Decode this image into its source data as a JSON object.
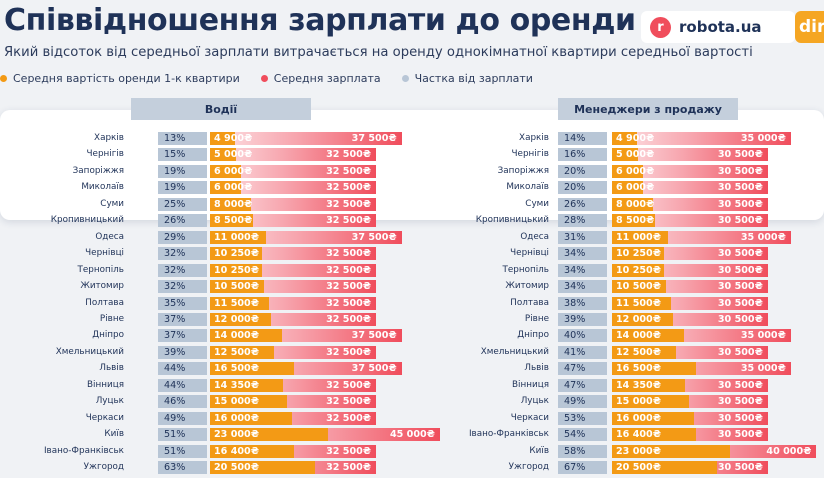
{
  "header": {
    "title": "Співвідношення зарплати до оренди",
    "subtitle": "Який відсоток від середньої зарплати витрачається на оренду однокімнатної квартири середньої вартості"
  },
  "logo": {
    "text": "robota.ua",
    "letter": "r",
    "partner": "dir"
  },
  "legend": [
    {
      "label": "Середня вартість оренди 1-к квартири",
      "color": "#f39a15"
    },
    {
      "label": "Середня зарплата",
      "color": "#f04d5c"
    },
    {
      "label": "Частка від зарплати",
      "color": "#b8c6d6"
    }
  ],
  "colors": {
    "rent": "#f39a15",
    "salary": "#f04d5c",
    "share": "#b8c6d6",
    "title": "#1f3258"
  },
  "chart_data": [
    {
      "type": "bar",
      "title": "Водії",
      "series_names": [
        "Середня вартість оренди 1-к квартири",
        "Середня зарплата",
        "Частка від зарплати"
      ],
      "rows": [
        {
          "city": "Харків",
          "share": "13%",
          "rent": 4900,
          "rent_label": "4 900₴",
          "salary": 37500,
          "salary_label": "37 500₴"
        },
        {
          "city": "Чернігів",
          "share": "15%",
          "rent": 5000,
          "rent_label": "5 000₴",
          "salary": 32500,
          "salary_label": "32 500₴"
        },
        {
          "city": "Запоріжжя",
          "share": "19%",
          "rent": 6000,
          "rent_label": "6 000₴",
          "salary": 32500,
          "salary_label": "32 500₴"
        },
        {
          "city": "Миколаїв",
          "share": "19%",
          "rent": 6000,
          "rent_label": "6 000₴",
          "salary": 32500,
          "salary_label": "32 500₴"
        },
        {
          "city": "Суми",
          "share": "25%",
          "rent": 8000,
          "rent_label": "8 000₴",
          "salary": 32500,
          "salary_label": "32 500₴"
        },
        {
          "city": "Кропивницький",
          "share": "26%",
          "rent": 8500,
          "rent_label": "8 500₴",
          "salary": 32500,
          "salary_label": "32 500₴"
        },
        {
          "city": "Одеса",
          "share": "29%",
          "rent": 11000,
          "rent_label": "11 000₴",
          "salary": 37500,
          "salary_label": "37 500₴"
        },
        {
          "city": "Чернівці",
          "share": "32%",
          "rent": 10250,
          "rent_label": "10 250₴",
          "salary": 32500,
          "salary_label": "32 500₴"
        },
        {
          "city": "Тернопіль",
          "share": "32%",
          "rent": 10250,
          "rent_label": "10 250₴",
          "salary": 32500,
          "salary_label": "32 500₴"
        },
        {
          "city": "Житомир",
          "share": "32%",
          "rent": 10500,
          "rent_label": "10 500₴",
          "salary": 32500,
          "salary_label": "32 500₴"
        },
        {
          "city": "Полтава",
          "share": "35%",
          "rent": 11500,
          "rent_label": "11 500₴",
          "salary": 32500,
          "salary_label": "32 500₴"
        },
        {
          "city": "Рівне",
          "share": "37%",
          "rent": 12000,
          "rent_label": "12 000₴",
          "salary": 32500,
          "salary_label": "32 500₴"
        },
        {
          "city": "Дніпро",
          "share": "37%",
          "rent": 14000,
          "rent_label": "14 000₴",
          "salary": 37500,
          "salary_label": "37 500₴"
        },
        {
          "city": "Хмельницький",
          "share": "39%",
          "rent": 12500,
          "rent_label": "12 500₴",
          "salary": 32500,
          "salary_label": "32 500₴"
        },
        {
          "city": "Львів",
          "share": "44%",
          "rent": 16500,
          "rent_label": "16 500₴",
          "salary": 37500,
          "salary_label": "37 500₴"
        },
        {
          "city": "Вінниця",
          "share": "44%",
          "rent": 14350,
          "rent_label": "14 350₴",
          "salary": 32500,
          "salary_label": "32 500₴"
        },
        {
          "city": "Луцьк",
          "share": "46%",
          "rent": 15000,
          "rent_label": "15 000₴",
          "salary": 32500,
          "salary_label": "32 500₴"
        },
        {
          "city": "Черкаси",
          "share": "49%",
          "rent": 16000,
          "rent_label": "16 000₴",
          "salary": 32500,
          "salary_label": "32 500₴"
        },
        {
          "city": "Київ",
          "share": "51%",
          "rent": 23000,
          "rent_label": "23 000₴",
          "salary": 45000,
          "salary_label": "45 000₴"
        },
        {
          "city": "Івано-Франківськ",
          "share": "51%",
          "rent": 16400,
          "rent_label": "16 400₴",
          "salary": 32500,
          "salary_label": "32 500₴"
        },
        {
          "city": "Ужгород",
          "share": "63%",
          "rent": 20500,
          "rent_label": "20 500₴",
          "salary": 32500,
          "salary_label": "32 500₴"
        }
      ]
    },
    {
      "type": "bar",
      "title": "Менеджери з продажу",
      "series_names": [
        "Середня вартість оренди 1-к квартири",
        "Середня зарплата",
        "Частка від зарплати"
      ],
      "rows": [
        {
          "city": "Харків",
          "share": "14%",
          "rent": 4900,
          "rent_label": "4 900₴",
          "salary": 35000,
          "salary_label": "35 000₴"
        },
        {
          "city": "Чернігів",
          "share": "16%",
          "rent": 5000,
          "rent_label": "5 000₴",
          "salary": 30500,
          "salary_label": "30 500₴"
        },
        {
          "city": "Запоріжжя",
          "share": "20%",
          "rent": 6000,
          "rent_label": "6 000₴",
          "salary": 30500,
          "salary_label": "30 500₴"
        },
        {
          "city": "Миколаїв",
          "share": "20%",
          "rent": 6000,
          "rent_label": "6 000₴",
          "salary": 30500,
          "salary_label": "30 500₴"
        },
        {
          "city": "Суми",
          "share": "26%",
          "rent": 8000,
          "rent_label": "8 000₴",
          "salary": 30500,
          "salary_label": "30 500₴"
        },
        {
          "city": "Кропивницький",
          "share": "28%",
          "rent": 8500,
          "rent_label": "8 500₴",
          "salary": 30500,
          "salary_label": "30 500₴"
        },
        {
          "city": "Одеса",
          "share": "31%",
          "rent": 11000,
          "rent_label": "11 000₴",
          "salary": 35000,
          "salary_label": "35 000₴"
        },
        {
          "city": "Чернівці",
          "share": "34%",
          "rent": 10250,
          "rent_label": "10 250₴",
          "salary": 30500,
          "salary_label": "30 500₴"
        },
        {
          "city": "Тернопіль",
          "share": "34%",
          "rent": 10250,
          "rent_label": "10 250₴",
          "salary": 30500,
          "salary_label": "30 500₴"
        },
        {
          "city": "Житомир",
          "share": "34%",
          "rent": 10500,
          "rent_label": "10 500₴",
          "salary": 30500,
          "salary_label": "30 500₴"
        },
        {
          "city": "Полтава",
          "share": "38%",
          "rent": 11500,
          "rent_label": "11 500₴",
          "salary": 30500,
          "salary_label": "30 500₴"
        },
        {
          "city": "Рівне",
          "share": "39%",
          "rent": 12000,
          "rent_label": "12 000₴",
          "salary": 30500,
          "salary_label": "30 500₴"
        },
        {
          "city": "Дніпро",
          "share": "40%",
          "rent": 14000,
          "rent_label": "14 000₴",
          "salary": 35000,
          "salary_label": "35 000₴"
        },
        {
          "city": "Хмельницький",
          "share": "41%",
          "rent": 12500,
          "rent_label": "12 500₴",
          "salary": 30500,
          "salary_label": "30 500₴"
        },
        {
          "city": "Львів",
          "share": "47%",
          "rent": 16500,
          "rent_label": "16 500₴",
          "salary": 35000,
          "salary_label": "35 000₴"
        },
        {
          "city": "Вінниця",
          "share": "47%",
          "rent": 14350,
          "rent_label": "14 350₴",
          "salary": 30500,
          "salary_label": "30 500₴"
        },
        {
          "city": "Луцьк",
          "share": "49%",
          "rent": 15000,
          "rent_label": "15 000₴",
          "salary": 30500,
          "salary_label": "30 500₴"
        },
        {
          "city": "Черкаси",
          "share": "53%",
          "rent": 16000,
          "rent_label": "16 000₴",
          "salary": 30500,
          "salary_label": "30 500₴"
        },
        {
          "city": "Івано-Франківськ",
          "share": "54%",
          "rent": 16400,
          "rent_label": "16 400₴",
          "salary": 30500,
          "salary_label": "30 500₴"
        },
        {
          "city": "Київ",
          "share": "58%",
          "rent": 23000,
          "rent_label": "23 000₴",
          "salary": 40000,
          "salary_label": "40 000₴"
        },
        {
          "city": "Ужгород",
          "share": "67%",
          "rent": 20500,
          "rent_label": "20 500₴",
          "salary": 30500,
          "salary_label": "30 500₴"
        }
      ]
    }
  ]
}
